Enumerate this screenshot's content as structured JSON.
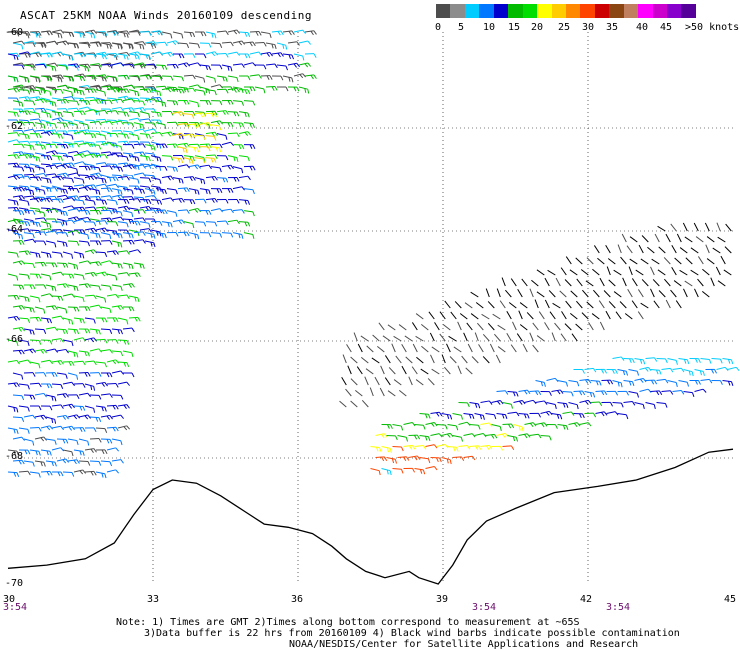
{
  "title": "ASCAT 25KM NOAA Winds 20160109 descending",
  "legend": {
    "colors": [
      "#4d4d4d",
      "#8c8c8c",
      "#00ccff",
      "#0077ff",
      "#0000cc",
      "#00bb00",
      "#00dd00",
      "#ffff00",
      "#ffcc00",
      "#ff8800",
      "#ff4400",
      "#cc0000",
      "#8b4513",
      "#c08060",
      "#ff00ff",
      "#cc00cc",
      "#8800cc",
      "#550099"
    ],
    "labels": [
      "0",
      "5",
      "10",
      "15",
      "20",
      "25",
      "30",
      "35",
      "40",
      "45",
      ">50 knots"
    ]
  },
  "axes": {
    "lat_labels": [
      "-60",
      "-62",
      "-64",
      "-66",
      "-68",
      "-70"
    ],
    "lon_labels": [
      "30",
      "33",
      "36",
      "39",
      "42",
      "45"
    ],
    "time_labels": [
      "3:54",
      "3:54",
      "3:54"
    ]
  },
  "notes": {
    "line1": "Note: 1) Times are GMT 2)Times along bottom correspond to measurement at ~65S",
    "line2": "3)Data buffer is 22 hrs from 20160109 4) Black wind barbs indicate possible contamination",
    "line3": "NOAA/NESDIS/Center for Satellite Applications and Research"
  },
  "map_data": {
    "lon_range": [
      30,
      45
    ],
    "lat_range": [
      -70,
      -60
    ],
    "grid": true,
    "coastline": [
      [
        30.0,
        -69.75
      ],
      [
        30.8,
        -69.7
      ],
      [
        31.6,
        -69.6
      ],
      [
        32.2,
        -69.35
      ],
      [
        32.6,
        -68.9
      ],
      [
        33.0,
        -68.5
      ],
      [
        33.4,
        -68.35
      ],
      [
        33.9,
        -68.4
      ],
      [
        34.4,
        -68.6
      ],
      [
        34.9,
        -68.85
      ],
      [
        35.3,
        -69.05
      ],
      [
        35.8,
        -69.1
      ],
      [
        36.3,
        -69.2
      ],
      [
        36.7,
        -69.4
      ],
      [
        37.0,
        -69.6
      ],
      [
        37.4,
        -69.8
      ],
      [
        37.8,
        -69.9
      ],
      [
        38.3,
        -69.8
      ],
      [
        38.5,
        -69.9
      ],
      [
        38.9,
        -70.0
      ],
      [
        39.2,
        -69.7
      ],
      [
        39.5,
        -69.3
      ],
      [
        39.9,
        -69.0
      ],
      [
        40.5,
        -68.8
      ],
      [
        41.3,
        -68.55
      ],
      [
        42.2,
        -68.45
      ],
      [
        43.0,
        -68.35
      ],
      [
        43.8,
        -68.15
      ],
      [
        44.5,
        -67.9
      ],
      [
        45.0,
        -67.85
      ]
    ],
    "barb_swaths": [
      {
        "name": "western",
        "lon": [
          30.0,
          33.0
        ],
        "lat": [
          -68.3,
          -60.0
        ],
        "colors": [
          "#4d4d4d",
          "#00ccff",
          "#0077ff",
          "#0000cc",
          "#00bb00",
          "#00dd00",
          "#0000cc",
          "#0077ff"
        ]
      },
      {
        "name": "northern-edge",
        "lon": [
          30.0,
          36.2
        ],
        "lat": [
          -61.2,
          -60.0
        ],
        "colors": [
          "#4d4d4d",
          "#00ccff",
          "#0000cc",
          "#00bb00"
        ]
      },
      {
        "name": "northwest-winds",
        "lon": [
          30.0,
          35.0
        ],
        "lat": [
          -64.2,
          -61.2
        ],
        "colors": [
          "#00bb00",
          "#00dd00",
          "#0000cc",
          "#0077ff"
        ]
      },
      {
        "name": "strong-winds",
        "lon": [
          33.4,
          34.3
        ],
        "lat": [
          -62.7,
          -61.7
        ],
        "colors": [
          "#ffff00",
          "#ffcc00"
        ]
      },
      {
        "name": "eastern-contaminated",
        "lon": [
          37.0,
          45.0
        ],
        "lat": [
          -67.5,
          -64.0
        ],
        "colors": [
          "#000000",
          "#4d4d4d"
        ]
      },
      {
        "name": "eastern-coastal",
        "lon": [
          37.5,
          45.0
        ],
        "lat": [
          -68.3,
          -66.3
        ],
        "colors": [
          "#00ccff",
          "#0077ff",
          "#0000cc",
          "#00bb00",
          "#ffff00",
          "#ff4400"
        ]
      }
    ]
  }
}
